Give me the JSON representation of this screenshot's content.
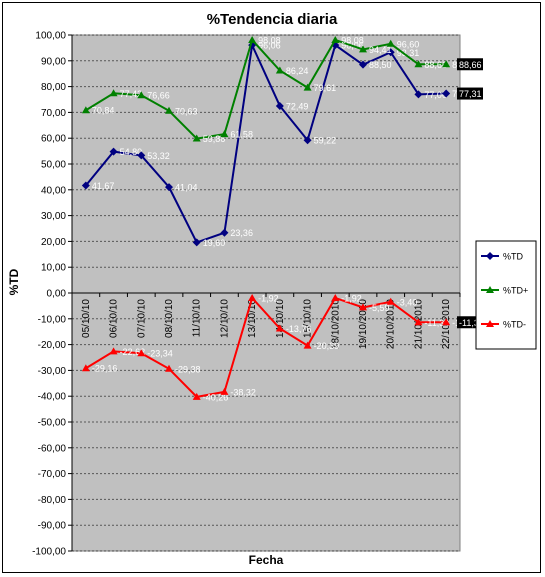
{
  "chart_data": {
    "type": "line",
    "title": "%Tendencia diaria",
    "xlabel": "Fecha",
    "ylabel": "%TD",
    "ylim": [
      -100,
      100
    ],
    "ytick_step": 10,
    "grid": true,
    "legend_position": "right",
    "categories": [
      "05/10/10",
      "06/10/10",
      "07/10/10",
      "08/10/10",
      "11/10/10",
      "12/10/10",
      "13/10/10",
      "14/10/10",
      "15/10/10",
      "18/10/2010",
      "19/10/2010",
      "20/10/2010",
      "21/10/2010",
      "22/10/2010"
    ],
    "ytick_labels": [
      "100,00",
      "90,00",
      "80,00",
      "70,00",
      "60,00",
      "50,00",
      "40,00",
      "30,00",
      "20,00",
      "10,00",
      "0,00",
      "-10,00",
      "-20,00",
      "-30,00",
      "-40,00",
      "-50,00",
      "-60,00",
      "-70,00",
      "-80,00",
      "-90,00",
      "-100,00"
    ],
    "series": [
      {
        "name": "%TD",
        "color": "#000080",
        "marker": "diamond",
        "values": [
          41.67,
          54.8,
          53.32,
          41.04,
          19.6,
          23.36,
          96.06,
          72.49,
          59.22,
          96.06,
          88.5,
          93.31,
          77.0,
          77.31
        ],
        "labels": [
          "41,67",
          "54,80",
          "53,32",
          "41,04",
          "19,60",
          "23,36",
          "96,06",
          "72,49",
          "59,22",
          "96,06",
          "88,50",
          "93,31",
          "77,00",
          "77,31"
        ]
      },
      {
        "name": "%TD+",
        "color": "#008000",
        "marker": "triangle",
        "values": [
          70.84,
          77.42,
          76.66,
          70.63,
          59.86,
          61.58,
          98.08,
          86.24,
          79.61,
          98.08,
          94.41,
          96.6,
          88.66,
          88.66
        ],
        "labels": [
          "70,84",
          "77,42",
          "76,66",
          "70,63",
          "59,86",
          "61,58",
          "98,08",
          "86,24",
          "79,61",
          "98,08",
          "94,41",
          "96,60",
          "88,66",
          "88,66"
        ]
      },
      {
        "name": "%TD-",
        "color": "#ff0000",
        "marker": "triangle",
        "values": [
          -29.16,
          -22.62,
          -23.34,
          -29.38,
          -40.26,
          -38.32,
          -1.92,
          -13.76,
          -20.39,
          -1.92,
          -5.59,
          -3.4,
          -11.34,
          -11.34
        ],
        "labels": [
          "-29,16",
          "-22,62",
          "-23,34",
          "-29,38",
          "-40,26",
          "-38,32",
          "-1,92",
          "-13,76",
          "-20,39",
          "-1,92",
          "-5,59",
          "-3,40",
          "-11,34",
          "-11,34"
        ]
      }
    ],
    "end_tags": [
      "88,66",
      "77,31",
      "-11,3"
    ]
  }
}
